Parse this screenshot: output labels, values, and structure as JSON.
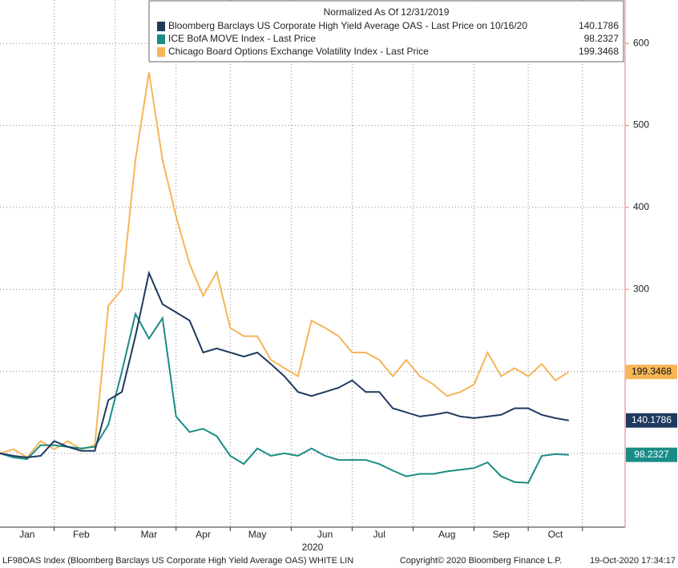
{
  "chart_data": {
    "type": "line",
    "legend_title": "Normalized As Of 12/31/2019",
    "categories": [
      null,
      null,
      "Jan",
      null,
      null,
      null,
      "Feb",
      null,
      null,
      null,
      null,
      "Mar",
      null,
      null,
      null,
      "Apr",
      null,
      null,
      null,
      "May",
      null,
      null,
      null,
      null,
      "Jun",
      null,
      null,
      null,
      "Jul",
      null,
      null,
      null,
      null,
      "Aug",
      null,
      null,
      null,
      "Sep",
      null,
      null,
      null,
      "Oct",
      null
    ],
    "x_axis_label": "2020",
    "series": [
      {
        "name": "Bloomberg Barclays US Corporate High Yield Average OAS - Last Price on 10/16/20",
        "color": "#1f3a5f",
        "last_value": 140.1786,
        "values": [
          100,
          97,
          95,
          97,
          115,
          108,
          103,
          103,
          165,
          175,
          243,
          320,
          282,
          272,
          262,
          223,
          228,
          223,
          218,
          223,
          209,
          194,
          175,
          170,
          175,
          180,
          189,
          175,
          175,
          155,
          150,
          145,
          147,
          150,
          145,
          143,
          145,
          147,
          155,
          155,
          147,
          143,
          140.1786
        ]
      },
      {
        "name": "ICE BofA MOVE Index - Last Price",
        "color": "#1a8c86",
        "last_value": 98.2327,
        "values": [
          100,
          95,
          93,
          110,
          110,
          108,
          106,
          108,
          135,
          200,
          270,
          240,
          265,
          145,
          126,
          130,
          121,
          97,
          87,
          106,
          97,
          100,
          97,
          106,
          97,
          92,
          92,
          92,
          87,
          79,
          72,
          75,
          75,
          78,
          80,
          82,
          89,
          72,
          65,
          64,
          97,
          99,
          98.2327
        ]
      },
      {
        "name": "Chicago Board Options Exchange Volatility Index - Last Price",
        "color": "#f6b556",
        "last_value": 199.3468,
        "values": [
          100,
          105,
          95,
          115,
          105,
          115,
          105,
          110,
          280,
          300,
          458,
          565,
          458,
          389,
          331,
          292,
          321,
          253,
          243,
          243,
          214,
          204,
          194,
          262,
          253,
          243,
          223,
          223,
          214,
          194,
          214,
          194,
          184,
          170,
          175,
          184,
          223,
          194,
          204,
          194,
          209,
          189,
          199.3468
        ]
      }
    ],
    "ylim": [
      10,
      653
    ],
    "yticks": [
      100,
      200,
      300,
      400,
      500,
      600
    ],
    "grid": true,
    "footer_left": "LF98OAS Index (Bloomberg Barclays US Corporate High Yield Average OAS) WHITE LIN",
    "footer_center": "Copyright© 2020 Bloomberg Finance L.P.",
    "footer_right": "19-Oct-2020 17:34:17"
  }
}
